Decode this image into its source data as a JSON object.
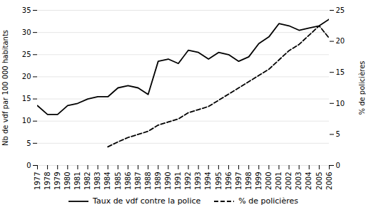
{
  "chart_data": {
    "type": "line",
    "x": [
      1977,
      1978,
      1979,
      1980,
      1981,
      1982,
      1983,
      1984,
      1985,
      1986,
      1987,
      1988,
      1989,
      1990,
      1991,
      1992,
      1993,
      1994,
      1995,
      1996,
      1997,
      1998,
      1999,
      2000,
      2001,
      2002,
      2003,
      2004,
      2005,
      2006
    ],
    "xlim": [
      1977,
      2006
    ],
    "xticks": [
      1977,
      1978,
      1979,
      1980,
      1981,
      1982,
      1983,
      1984,
      1985,
      1986,
      1987,
      1988,
      1989,
      1990,
      1991,
      1992,
      1993,
      1994,
      1995,
      1996,
      1997,
      1998,
      1999,
      2000,
      2001,
      2002,
      2003,
      2004,
      2005,
      2006
    ],
    "ylim": [
      0,
      35
    ],
    "yticks": [
      0,
      5,
      10,
      15,
      20,
      25,
      30,
      35
    ],
    "y2lim": [
      0,
      25
    ],
    "y2ticks": [
      0,
      5,
      10,
      15,
      20,
      25
    ],
    "ylabel": "Nb de vdf par 100 000 habitants",
    "y2label": "% de policières",
    "grid": true,
    "legend": "bottom",
    "series": [
      {
        "name": "Taux de vdf contre la police",
        "color": "#000000",
        "line_style": "solid",
        "values": [
          13.5,
          11.5,
          11.5,
          13.5,
          14.0,
          15.0,
          15.5,
          15.5,
          17.5,
          18.0,
          17.5,
          16.0,
          23.5,
          24.0,
          23.0,
          26.0,
          25.5,
          24.0,
          25.5,
          25.0,
          23.5,
          24.5,
          27.5,
          29.0,
          32.0,
          31.5,
          30.5,
          31.0,
          31.5,
          33.0
        ]
      },
      {
        "name": "% de policières",
        "color": "#000000",
        "line_style": "dashed",
        "axis": "y2",
        "values": [
          null,
          null,
          null,
          null,
          null,
          null,
          null,
          3.0,
          3.8,
          4.5,
          5.0,
          5.5,
          6.5,
          7.0,
          7.5,
          8.5,
          9.0,
          9.5,
          10.5,
          11.5,
          12.5,
          13.5,
          14.5,
          15.5,
          17.0,
          18.5,
          19.5,
          21.0,
          22.5,
          20.5
        ]
      }
    ]
  }
}
